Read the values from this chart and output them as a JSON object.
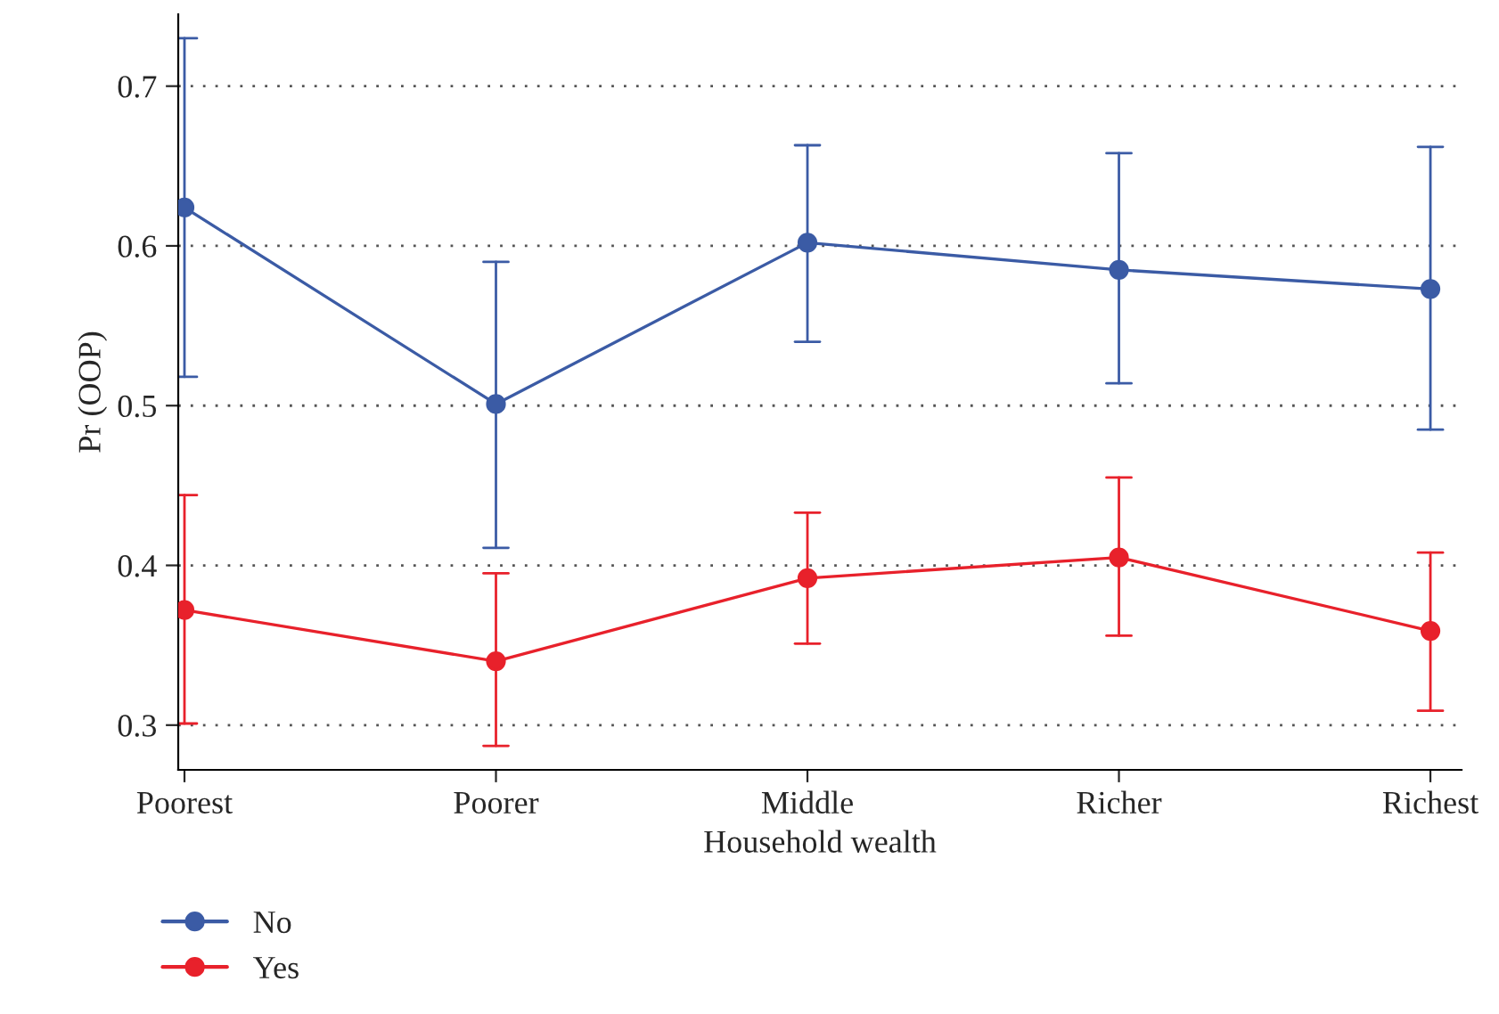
{
  "chart_data": {
    "type": "line",
    "xlabel": "Household wealth",
    "ylabel": "Pr (OOP)",
    "categories": [
      "Poorest",
      "Poorer",
      "Middle",
      "Richer",
      "Richest"
    ],
    "series": [
      {
        "name": "No",
        "color": "#3b5ba5",
        "values": [
          0.624,
          0.501,
          0.602,
          0.585,
          0.573
        ],
        "errors": [
          [
            0.518,
            0.73
          ],
          [
            0.411,
            0.59
          ],
          [
            0.54,
            0.663
          ],
          [
            0.514,
            0.658
          ],
          [
            0.485,
            0.662
          ]
        ]
      },
      {
        "name": "Yes",
        "color": "#e8212b",
        "values": [
          0.372,
          0.34,
          0.392,
          0.405,
          0.359
        ],
        "errors": [
          [
            0.301,
            0.444
          ],
          [
            0.287,
            0.395
          ],
          [
            0.351,
            0.433
          ],
          [
            0.356,
            0.455
          ],
          [
            0.309,
            0.408
          ]
        ]
      }
    ],
    "ylim": [
      0.272,
      0.745
    ],
    "yticks": [
      {
        "value": 0.3,
        "label": "0.3"
      },
      {
        "value": 0.4,
        "label": "0.4"
      },
      {
        "value": 0.5,
        "label": "0.5"
      },
      {
        "value": 0.6,
        "label": "0.6"
      },
      {
        "value": 0.7,
        "label": "0.7"
      }
    ],
    "grid": "y",
    "legend": "bottom left",
    "marker": "circle",
    "line_style": "solid"
  }
}
